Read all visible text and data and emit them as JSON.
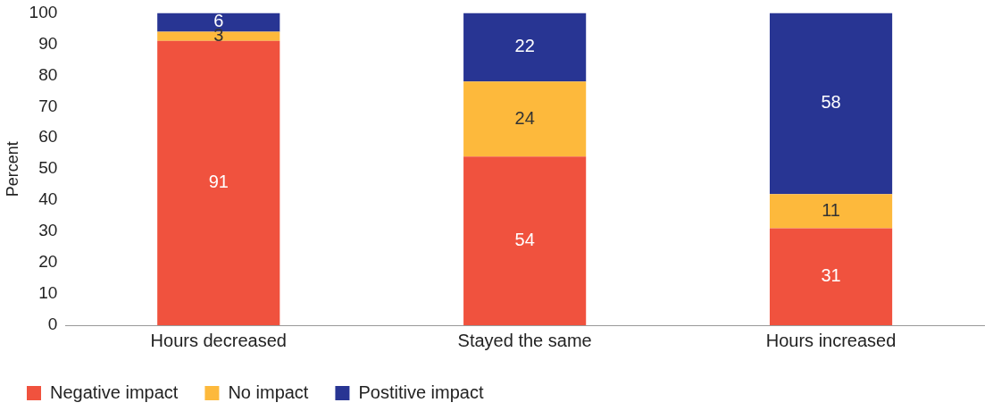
{
  "chart_data": {
    "type": "bar",
    "stacked": true,
    "ylabel": "Percent",
    "categories": [
      "Hours decreased",
      "Stayed the same",
      "Hours increased"
    ],
    "series": [
      {
        "name": "Negative impact",
        "color": "#f0523e",
        "values": [
          91,
          54,
          31
        ]
      },
      {
        "name": "No impact",
        "color": "#fdb93c",
        "values": [
          3,
          24,
          11
        ]
      },
      {
        "name": "Postitive impact",
        "color": "#283593",
        "values": [
          6,
          22,
          58
        ]
      }
    ],
    "ylim": [
      0,
      100
    ],
    "yticks": [
      0,
      10,
      20,
      30,
      40,
      50,
      60,
      70,
      80,
      90,
      100
    ],
    "grid": false,
    "legend": "bottom left",
    "data_labels": true
  }
}
